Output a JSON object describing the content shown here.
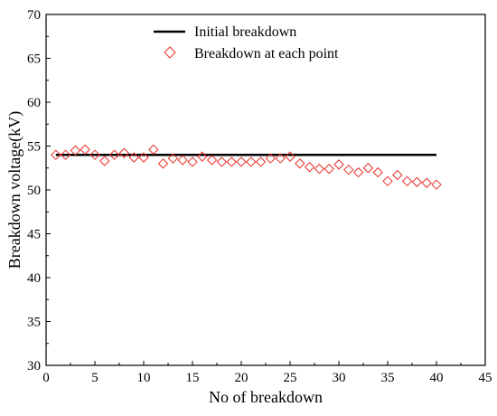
{
  "chart_data": {
    "type": "scatter",
    "title": "",
    "xlabel": "No of breakdown",
    "ylabel": "Breakdown voltage(kV)",
    "xlim": [
      0,
      45
    ],
    "ylim": [
      30,
      70
    ],
    "xticks": [
      0,
      5,
      10,
      15,
      20,
      25,
      30,
      35,
      40,
      45
    ],
    "yticks": [
      30,
      35,
      40,
      45,
      50,
      55,
      60,
      65,
      70
    ],
    "grid": false,
    "legend_position": "top-center",
    "series": [
      {
        "name": "Initial breakdown",
        "kind": "line",
        "color": "#000000",
        "x": [
          1,
          40
        ],
        "y": [
          54,
          54
        ]
      },
      {
        "name": "Breakdown at each point",
        "kind": "scatter",
        "marker": "diamond-open",
        "color": "#e8302a",
        "x": [
          1,
          2,
          3,
          4,
          5,
          6,
          7,
          8,
          9,
          10,
          11,
          12,
          13,
          14,
          15,
          16,
          17,
          18,
          19,
          20,
          21,
          22,
          23,
          24,
          25,
          26,
          27,
          28,
          29,
          30,
          31,
          32,
          33,
          34,
          35,
          36,
          37,
          38,
          39,
          40
        ],
        "y": [
          54.0,
          54.0,
          54.5,
          54.6,
          54.0,
          53.3,
          54.0,
          54.2,
          53.7,
          53.7,
          54.6,
          53.0,
          53.6,
          53.4,
          53.2,
          53.8,
          53.4,
          53.2,
          53.2,
          53.2,
          53.2,
          53.2,
          53.6,
          53.6,
          53.8,
          53.0,
          52.6,
          52.4,
          52.4,
          52.9,
          52.3,
          52.0,
          52.5,
          52.0,
          51.0,
          51.7,
          51.0,
          50.9,
          50.8,
          50.6
        ]
      }
    ]
  }
}
